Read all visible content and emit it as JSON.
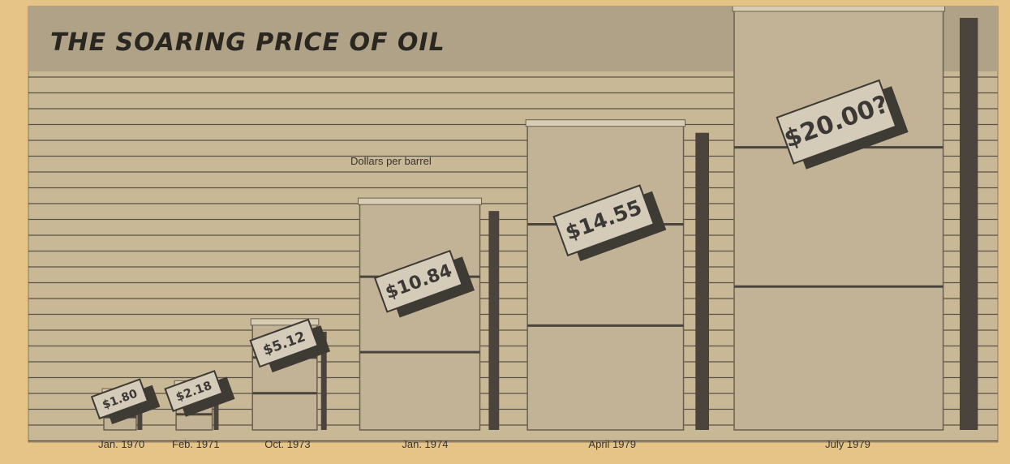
{
  "chart_data": {
    "type": "bar",
    "title": "THE SOARING PRICE OF OIL",
    "subtitle": "Dollars per barrel",
    "categories": [
      "Jan. 1970",
      "Feb. 1971",
      "Oct. 1973",
      "Jan. 1974",
      "April 1979",
      "July 1979"
    ],
    "values": [
      1.8,
      2.18,
      5.12,
      10.84,
      14.55,
      20
    ],
    "value_labels": [
      "$1.80",
      "$2.18",
      "$5.12",
      "$10.84",
      "$14.55",
      "$20.00?"
    ],
    "color": "#c2b397"
  }
}
